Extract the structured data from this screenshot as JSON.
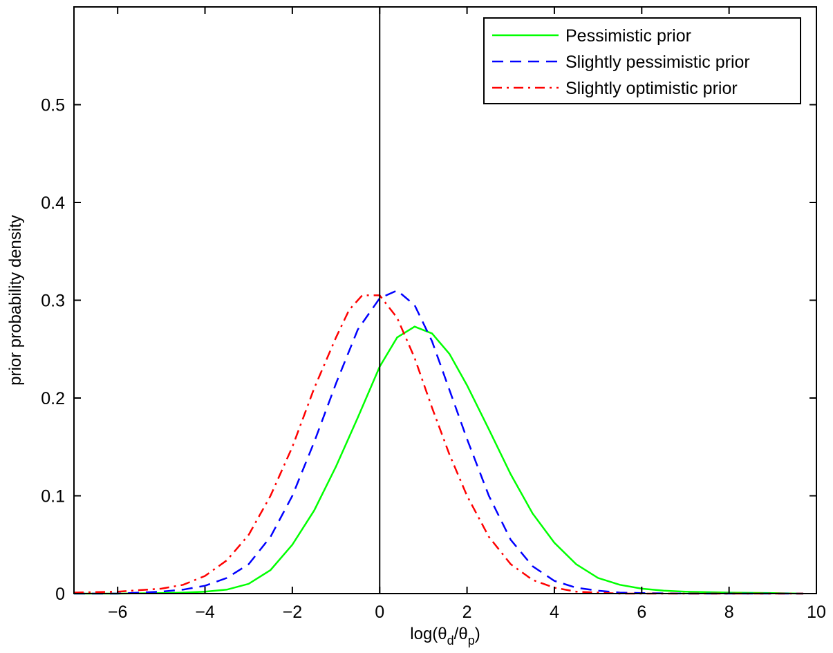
{
  "chart_data": {
    "type": "line",
    "title": "",
    "xlabel": "log(θ_d/θ_p)",
    "xlabel_parts": {
      "main": "log(θ",
      "sub1": "d",
      "mid": "/θ",
      "sub2": "p",
      "end": ")"
    },
    "ylabel": "prior probability density",
    "xlim": [
      -7,
      10
    ],
    "ylim": [
      0,
      0.6
    ],
    "xticks": [
      -6,
      -4,
      -2,
      0,
      2,
      4,
      6,
      8,
      10
    ],
    "xtick_labels": [
      "−6",
      "−4",
      "−2",
      "0",
      "2",
      "4",
      "6",
      "8",
      "10"
    ],
    "yticks": [
      0,
      0.1,
      0.2,
      0.3,
      0.4,
      0.5
    ],
    "ytick_labels": [
      "0",
      "0.1",
      "0.2",
      "0.3",
      "0.4",
      "0.5"
    ],
    "grid": false,
    "legend_position": "top-right",
    "reference_line_x": 0,
    "series": [
      {
        "name": "Pessimistic prior",
        "color": "#00ff00",
        "style": "solid",
        "x": [
          -7,
          -6,
          -5,
          -4.5,
          -4,
          -3.5,
          -3,
          -2.5,
          -2,
          -1.5,
          -1,
          -0.5,
          0,
          0.4,
          0.8,
          1.2,
          1.6,
          2,
          2.5,
          3,
          3.5,
          4,
          4.5,
          5,
          5.5,
          6,
          6.5,
          7,
          8,
          9,
          9.7
        ],
        "y": [
          0,
          0,
          0.0005,
          0.001,
          0.002,
          0.004,
          0.01,
          0.024,
          0.05,
          0.085,
          0.13,
          0.18,
          0.232,
          0.262,
          0.273,
          0.266,
          0.245,
          0.213,
          0.168,
          0.122,
          0.082,
          0.052,
          0.03,
          0.016,
          0.009,
          0.005,
          0.003,
          0.002,
          0.001,
          0.0005,
          0
        ]
      },
      {
        "name": "Slightly pessimistic prior",
        "color": "#0000ff",
        "style": "dashed",
        "x": [
          -7,
          -6,
          -5,
          -4.5,
          -4,
          -3.5,
          -3,
          -2.5,
          -2,
          -1.5,
          -1,
          -0.5,
          0,
          0.4,
          0.8,
          1.2,
          1.6,
          2,
          2.5,
          3,
          3.5,
          4,
          4.5,
          5,
          5.5,
          6,
          7,
          8,
          9,
          9.7
        ],
        "y": [
          0,
          0,
          0.002,
          0.004,
          0.008,
          0.016,
          0.03,
          0.058,
          0.1,
          0.155,
          0.215,
          0.27,
          0.302,
          0.31,
          0.295,
          0.258,
          0.208,
          0.158,
          0.1,
          0.055,
          0.028,
          0.013,
          0.006,
          0.003,
          0.001,
          0.0005,
          0,
          0,
          0,
          0
        ]
      },
      {
        "name": "Slightly optimistic prior",
        "color": "#ff0000",
        "style": "dashdot",
        "x": [
          -7,
          -6,
          -5,
          -4.5,
          -4,
          -3.5,
          -3,
          -2.5,
          -2,
          -1.5,
          -1,
          -0.7,
          -0.4,
          0,
          0.4,
          0.8,
          1.2,
          1.6,
          2,
          2.5,
          3,
          3.5,
          4,
          4.5,
          5,
          5.5,
          6,
          7,
          8,
          9,
          9.7
        ],
        "y": [
          0.001,
          0.002,
          0.005,
          0.009,
          0.018,
          0.034,
          0.06,
          0.1,
          0.15,
          0.21,
          0.262,
          0.29,
          0.305,
          0.305,
          0.282,
          0.241,
          0.19,
          0.142,
          0.1,
          0.058,
          0.03,
          0.014,
          0.006,
          0.002,
          0.001,
          0,
          0,
          0,
          0,
          0,
          0
        ]
      }
    ]
  }
}
